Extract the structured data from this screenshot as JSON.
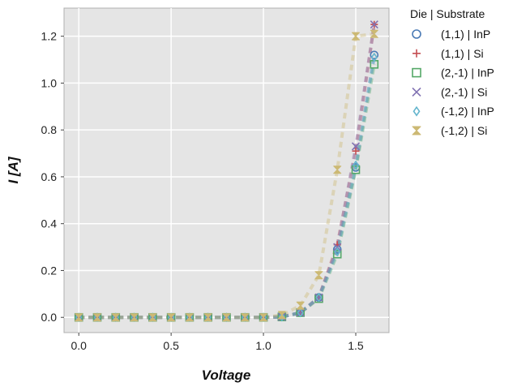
{
  "chart_data": {
    "type": "scatter",
    "title": "",
    "xlabel": "Voltage",
    "ylabel": "I [A]",
    "xlim": [
      -0.08,
      1.68
    ],
    "ylim": [
      -0.065,
      1.32
    ],
    "xticks": [
      0.0,
      0.5,
      1.0,
      1.5
    ],
    "xtick_labels": [
      "0.0",
      "0.5",
      "1.0",
      "1.5"
    ],
    "yticks": [
      0.0,
      0.2,
      0.4,
      0.6,
      0.8,
      1.0,
      1.2
    ],
    "ytick_labels": [
      "0.0",
      "0.2",
      "0.4",
      "0.6",
      "0.8",
      "1.0",
      "1.2"
    ],
    "grid": true,
    "legend_title": "Die | Substrate",
    "legend_position": "outside-right",
    "series": [
      {
        "name": "(1,1) | InP",
        "marker": "circle",
        "color": "#4a7ab5",
        "x": [
          0.0,
          0.1,
          0.2,
          0.3,
          0.4,
          0.5,
          0.6,
          0.7,
          0.8,
          0.9,
          1.0,
          1.1,
          1.2,
          1.3,
          1.4,
          1.5,
          1.6
        ],
        "y": [
          0.0,
          0.0,
          0.0,
          0.0,
          0.0,
          0.0,
          0.0,
          0.0,
          0.0,
          0.0,
          0.0,
          0.002,
          0.02,
          0.085,
          0.29,
          0.64,
          1.12
        ]
      },
      {
        "name": "(1,1) | Si",
        "marker": "plus",
        "color": "#c44e52",
        "x": [
          0.0,
          0.1,
          0.2,
          0.3,
          0.4,
          0.5,
          0.6,
          0.7,
          0.8,
          0.9,
          1.0,
          1.1,
          1.2,
          1.3,
          1.4,
          1.5,
          1.6
        ],
        "y": [
          0.0,
          0.0,
          0.0,
          0.0,
          0.0,
          0.0,
          0.0,
          0.0,
          0.0,
          0.0,
          0.0,
          0.002,
          0.02,
          0.085,
          0.31,
          0.71,
          1.25
        ]
      },
      {
        "name": "(2,-1) | InP",
        "marker": "square",
        "color": "#55a868",
        "x": [
          0.0,
          0.1,
          0.2,
          0.3,
          0.4,
          0.5,
          0.6,
          0.7,
          0.8,
          0.9,
          1.0,
          1.1,
          1.2,
          1.3,
          1.4,
          1.5,
          1.6
        ],
        "y": [
          0.0,
          0.0,
          0.0,
          0.0,
          0.0,
          0.0,
          0.0,
          0.0,
          0.0,
          0.0,
          0.0,
          0.002,
          0.02,
          0.08,
          0.27,
          0.63,
          1.08
        ]
      },
      {
        "name": "(2,-1) | Si",
        "marker": "x",
        "color": "#8172b2",
        "x": [
          0.0,
          0.1,
          0.2,
          0.3,
          0.4,
          0.5,
          0.6,
          0.7,
          0.8,
          0.9,
          1.0,
          1.1,
          1.2,
          1.3,
          1.4,
          1.5,
          1.6
        ],
        "y": [
          0.0,
          0.0,
          0.0,
          0.0,
          0.0,
          0.0,
          0.0,
          0.0,
          0.0,
          0.0,
          0.0,
          0.002,
          0.02,
          0.085,
          0.3,
          0.73,
          1.25
        ]
      },
      {
        "name": "(-1,2) | InP",
        "marker": "thin_diamond",
        "color": "#64b5cd",
        "x": [
          0.0,
          0.1,
          0.2,
          0.3,
          0.4,
          0.5,
          0.6,
          0.7,
          0.8,
          0.9,
          1.0,
          1.1,
          1.2,
          1.3,
          1.4,
          1.5,
          1.6
        ],
        "y": [
          0.0,
          0.0,
          0.0,
          0.0,
          0.0,
          0.0,
          0.0,
          0.0,
          0.0,
          0.0,
          0.0,
          0.002,
          0.02,
          0.085,
          0.28,
          0.65,
          1.11
        ]
      },
      {
        "name": "(-1,2) | Si",
        "marker": "hourglass",
        "color": "#ccb974",
        "x": [
          0.0,
          0.1,
          0.2,
          0.3,
          0.4,
          0.5,
          0.6,
          0.7,
          0.8,
          0.9,
          1.0,
          1.1,
          1.2,
          1.3,
          1.4,
          1.5,
          1.6
        ],
        "y": [
          0.0,
          0.0,
          0.0,
          0.0,
          0.0,
          0.0,
          0.0,
          0.0,
          0.0,
          0.0,
          0.0,
          0.01,
          0.05,
          0.18,
          0.63,
          1.2,
          1.21
        ]
      }
    ]
  }
}
